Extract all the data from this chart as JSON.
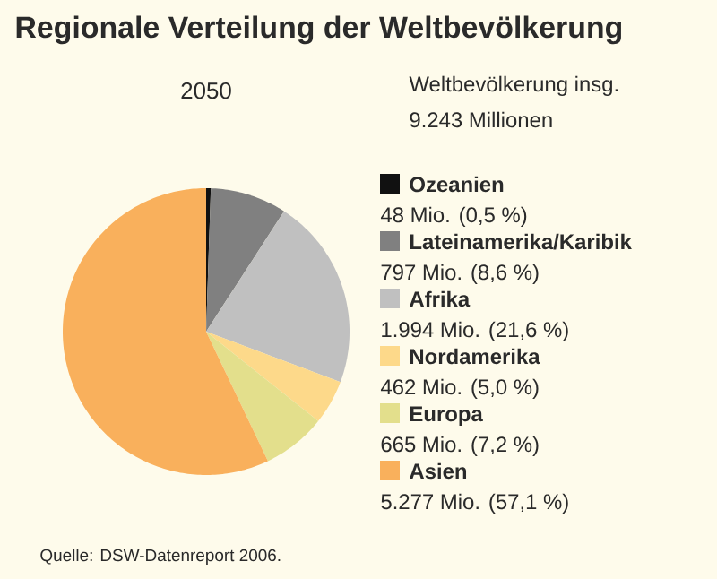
{
  "chart_data": {
    "type": "pie",
    "title": "Regionale Verteilung der Weltbevölkerung",
    "subtitle": "2050",
    "categories": [
      "Ozeanien",
      "Lateinamerika/Karibik",
      "Afrika",
      "Nordamerika",
      "Europa",
      "Asien"
    ],
    "values": [
      48,
      797,
      1994,
      462,
      665,
      5277
    ],
    "value_labels": [
      "48 Mio. (0,5 %)",
      "797 Mio. (8,6 %)",
      "1.994 Mio. (21,6 %)",
      "462 Mio. (5,0 %)",
      "665 Mio. (7,2 %)",
      "5.277 Mio. (57,1 %)"
    ],
    "colors": [
      "#111111",
      "#808080",
      "#c0c0c0",
      "#fdd98a",
      "#e3df8c",
      "#f9b05c"
    ],
    "legend": "right",
    "annotations": [
      "Weltbevölkerung insg.",
      "9.243 Millionen",
      "Quelle: DSW-Datenreport 2006."
    ]
  }
}
